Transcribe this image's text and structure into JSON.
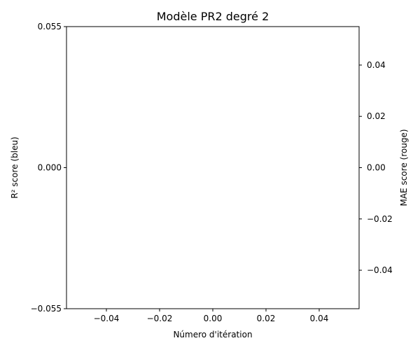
{
  "chart_data": {
    "type": "line",
    "title": "Modèle PR2 degré 2",
    "xlabel": "Número d'itération",
    "ylabel_left": "R² score (bleu)",
    "ylabel_right": "MAE score (rouge)",
    "xlim": [
      -0.055,
      0.055
    ],
    "ylim_left": [
      -0.055,
      0.055
    ],
    "ylim_right": [
      -0.055,
      0.055
    ],
    "x_ticks": [
      -0.04,
      -0.02,
      0.0,
      0.02,
      0.04
    ],
    "x_tick_labels": [
      "−0.04",
      "−0.02",
      "0.00",
      "0.02",
      "0.04"
    ],
    "y_left_ticks": [
      -0.055,
      0.0,
      0.055
    ],
    "y_left_tick_labels": [
      "−0.055",
      "0.000",
      "0.055"
    ],
    "y_right_ticks": [
      -0.04,
      -0.02,
      0.0,
      0.02,
      0.04
    ],
    "y_right_tick_labels": [
      "−0.04",
      "−0.02",
      "0.00",
      "0.02",
      "0.04"
    ],
    "grid": false,
    "series": [
      {
        "axis": "left",
        "color": "#1f77b4",
        "x": [],
        "y": []
      },
      {
        "axis": "right",
        "color": "#d62728",
        "x": [],
        "y": []
      }
    ]
  }
}
